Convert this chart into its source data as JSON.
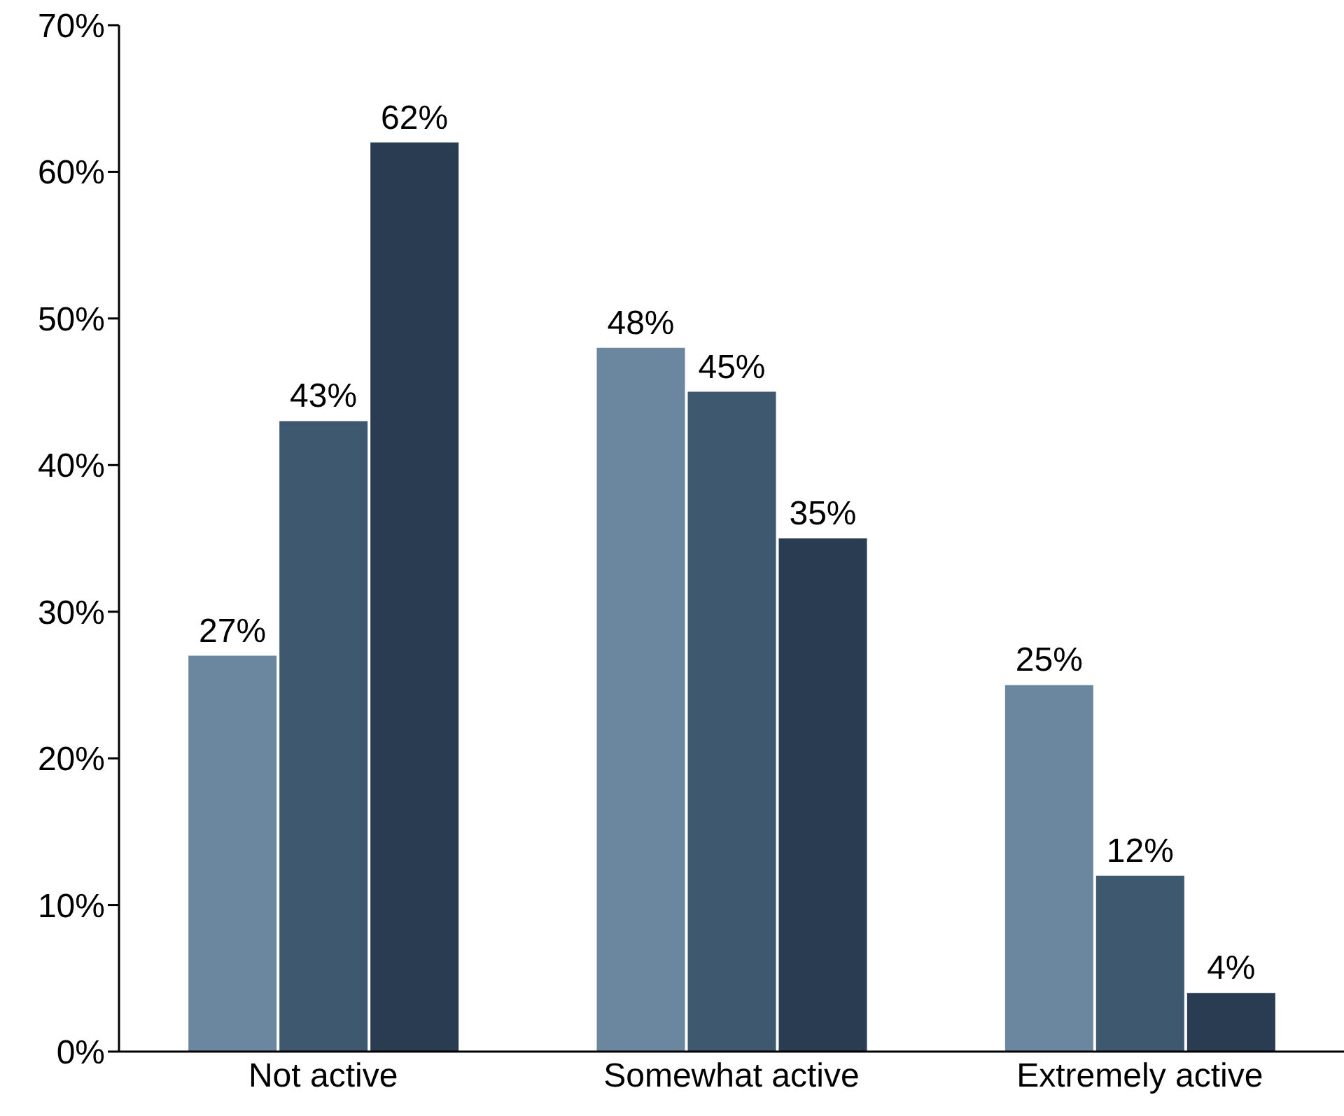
{
  "chart_data": {
    "type": "bar",
    "categories": [
      "Not active",
      "Somewhat active",
      "Extremely active"
    ],
    "series": [
      {
        "color": "#6b87a0",
        "values": [
          27,
          48,
          25
        ],
        "value_labels": [
          "27%",
          "48%",
          "25%"
        ]
      },
      {
        "color": "#3e586f",
        "values": [
          43,
          45,
          12
        ],
        "value_labels": [
          "43%",
          "45%",
          "12%"
        ]
      },
      {
        "color": "#293c51",
        "values": [
          62,
          35,
          4
        ],
        "value_labels": [
          "62%",
          "35%",
          "4%"
        ]
      }
    ],
    "ylim": [
      0,
      70
    ],
    "yticks": [
      {
        "value": 0,
        "label": "0%"
      },
      {
        "value": 10,
        "label": "10%"
      },
      {
        "value": 20,
        "label": "20%"
      },
      {
        "value": 30,
        "label": "30%"
      },
      {
        "value": 40,
        "label": "40%"
      },
      {
        "value": 50,
        "label": "50%"
      },
      {
        "value": 60,
        "label": "60%"
      },
      {
        "value": 70,
        "label": "70%"
      }
    ],
    "grid": false,
    "legend": false
  }
}
